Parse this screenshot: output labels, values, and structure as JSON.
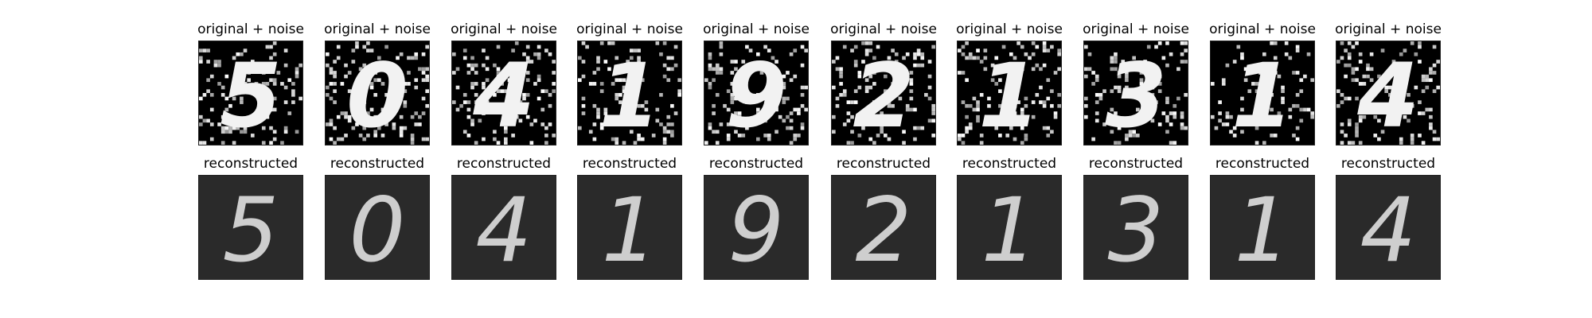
{
  "figure": {
    "rows": [
      {
        "row_name": "noisy",
        "label": "original + noise",
        "digits": [
          "5",
          "0",
          "4",
          "1",
          "9",
          "2",
          "1",
          "3",
          "1",
          "4"
        ]
      },
      {
        "row_name": "reconstructed",
        "label": "reconstructed",
        "digits": [
          "5",
          "0",
          "4",
          "1",
          "9",
          "2",
          "1",
          "3",
          "1",
          "4"
        ]
      }
    ],
    "colors": {
      "background": "#ffffff",
      "panel_bg": "#000000",
      "digit_noisy": "#f2f2f2",
      "digit_reconstructed": "#dcdcdc",
      "noise_pixel": "#ffffff"
    }
  }
}
